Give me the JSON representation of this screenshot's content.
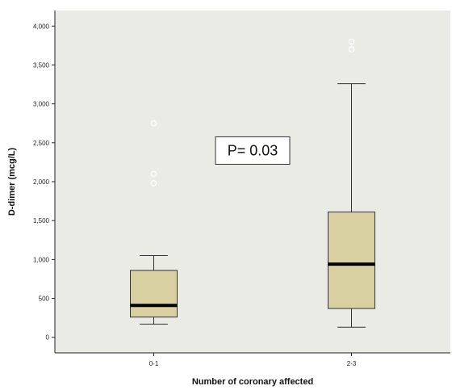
{
  "chart_data": {
    "type": "box",
    "title": "",
    "xlabel": "Number of coronary affected",
    "ylabel": "D-dimer (mcg/L)",
    "ylim": [
      -200,
      4200
    ],
    "yticks": [
      0,
      500,
      1000,
      1500,
      2000,
      2500,
      3000,
      3500,
      4000
    ],
    "ytick_labels": [
      "0",
      "500",
      "1,000",
      "1,500",
      "2,000",
      "2,500",
      "3,000",
      "3,500",
      "4,000"
    ],
    "grid": false,
    "categories": [
      "0-1",
      "2-3"
    ],
    "boxes": [
      {
        "category": "0-1",
        "whisker_low": 170,
        "q1": 260,
        "median": 410,
        "q3": 860,
        "whisker_high": 1050,
        "outliers": [
          1980,
          2100,
          2750
        ]
      },
      {
        "category": "2-3",
        "whisker_low": 130,
        "q1": 370,
        "median": 940,
        "q3": 1610,
        "whisker_high": 3260,
        "outliers": [
          3700,
          3800
        ]
      }
    ],
    "annotation": {
      "text": "P= 0.03",
      "x": 1.5,
      "y": 2400
    },
    "colors": {
      "plot_background": "#ebebe6",
      "box_fill": "#d8d0a0",
      "median_line": "#000000"
    }
  }
}
